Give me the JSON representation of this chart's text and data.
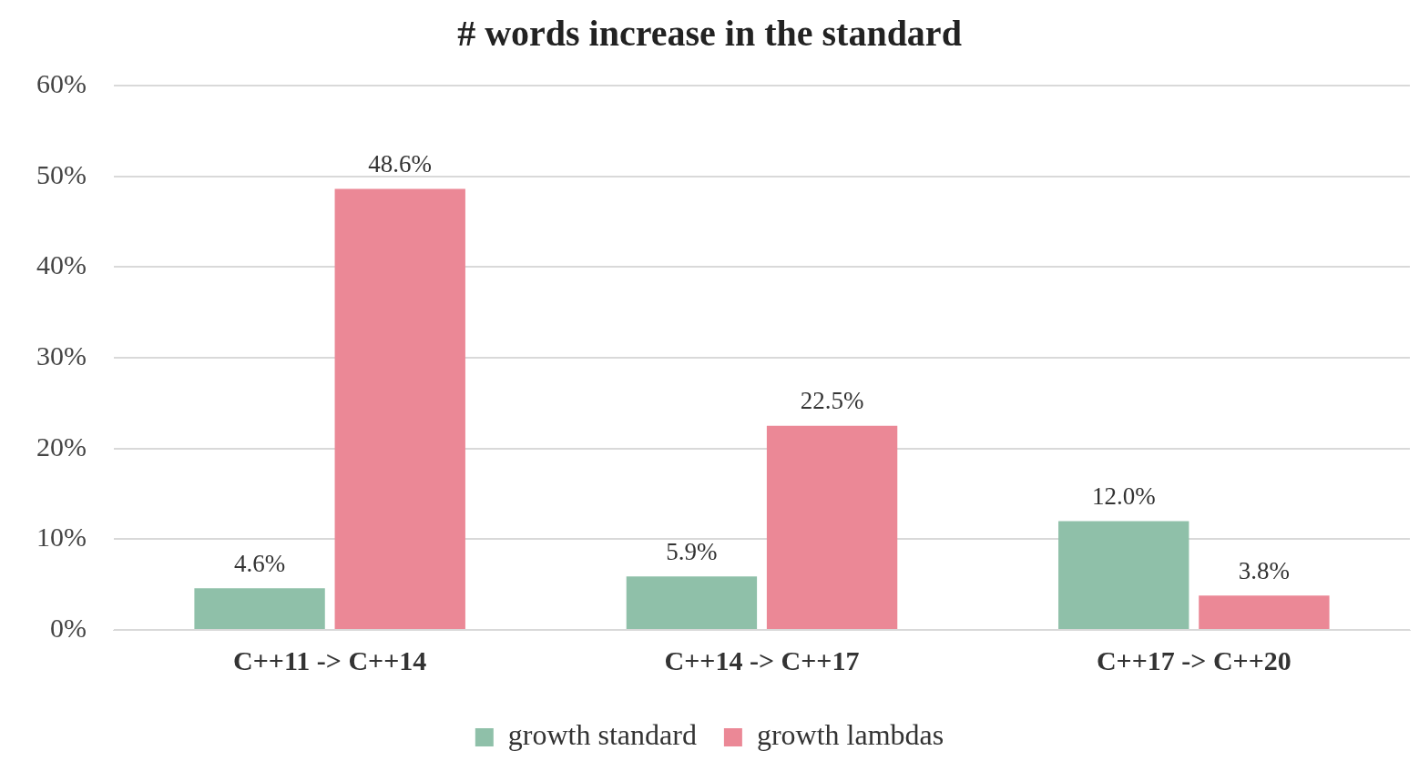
{
  "chart_data": {
    "type": "bar",
    "title": "# words increase in the standard",
    "categories": [
      "C++11 -> C++14",
      "C++14 -> C++17",
      "C++17 -> C++20"
    ],
    "series": [
      {
        "name": "growth standard",
        "color": "#8fc0a9",
        "values": [
          4.6,
          5.9,
          12.0
        ],
        "value_labels": [
          "4.6%",
          "5.9%",
          "12.0%"
        ]
      },
      {
        "name": "growth lambdas",
        "color": "#eb8896",
        "values": [
          48.6,
          22.5,
          3.8
        ],
        "value_labels": [
          "48.6%",
          "22.5%",
          "3.8%"
        ]
      }
    ],
    "ylim": [
      0,
      60
    ],
    "yticks": [
      {
        "value": 0,
        "label": "0%"
      },
      {
        "value": 10,
        "label": "10%"
      },
      {
        "value": 20,
        "label": "20%"
      },
      {
        "value": 30,
        "label": "30%"
      },
      {
        "value": 40,
        "label": "40%"
      },
      {
        "value": 50,
        "label": "50%"
      },
      {
        "value": 60,
        "label": "60%"
      }
    ],
    "grid": "y",
    "legend": "bottom"
  }
}
